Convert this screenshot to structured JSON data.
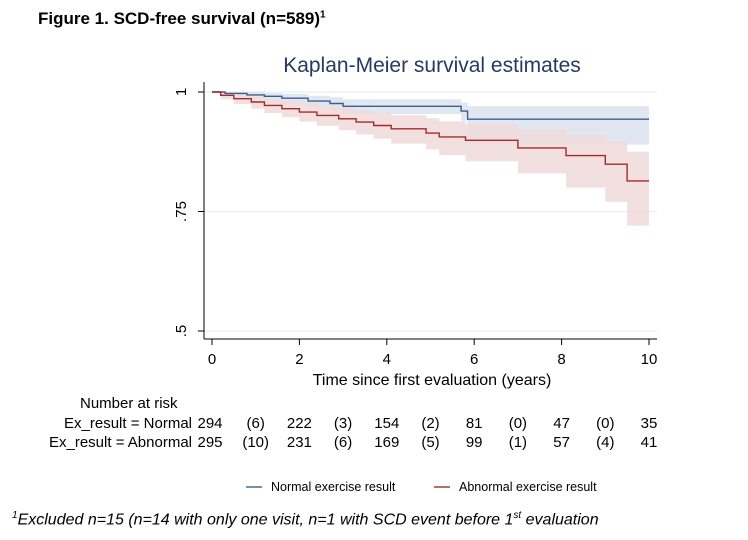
{
  "figure": {
    "title": "Figure 1. SCD-free survival (n=589)",
    "title_sup": "1"
  },
  "chart_data": {
    "type": "line",
    "title": "Kaplan-Meier survival estimates",
    "xlabel": "Time since first evaluation (years)",
    "ylabel": "",
    "xlim": [
      0,
      10
    ],
    "ylim": [
      0.5,
      1.0
    ],
    "x_ticks": [
      0,
      2,
      4,
      6,
      8,
      10
    ],
    "x_tick_labels": [
      "0",
      "2",
      "4",
      "6",
      "8",
      "10"
    ],
    "y_ticks": [
      0.5,
      0.75,
      1.0
    ],
    "y_tick_labels": [
      ".5",
      ".75",
      "1"
    ],
    "grid": true,
    "legend_position": "bottom",
    "series": [
      {
        "name": "Normal exercise result",
        "color": "#3a5f8f",
        "band_color": "#dbe3ee",
        "x": [
          0,
          0.3,
          0.8,
          1.2,
          1.6,
          2.2,
          2.7,
          3.0,
          5.7,
          5.85,
          10
        ],
        "y": [
          1.0,
          0.997,
          0.994,
          0.991,
          0.987,
          0.981,
          0.976,
          0.97,
          0.96,
          0.943,
          0.943
        ],
        "ci_lower": [
          1.0,
          0.99,
          0.985,
          0.98,
          0.975,
          0.968,
          0.962,
          0.954,
          0.94,
          0.89,
          0.89
        ],
        "ci_upper": [
          1.0,
          1.0,
          1.0,
          0.998,
          0.996,
          0.992,
          0.989,
          0.985,
          0.978,
          0.97,
          0.97
        ]
      },
      {
        "name": "Abnormal exercise result",
        "color": "#a52a2a",
        "band_color": "#f0dada",
        "x": [
          0,
          0.2,
          0.5,
          0.9,
          1.2,
          1.6,
          2.0,
          2.4,
          2.9,
          3.3,
          3.7,
          4.1,
          4.9,
          5.2,
          5.8,
          7.0,
          8.1,
          9.0,
          9.5,
          10
        ],
        "y": [
          1.0,
          0.993,
          0.986,
          0.979,
          0.972,
          0.965,
          0.958,
          0.951,
          0.944,
          0.937,
          0.93,
          0.923,
          0.914,
          0.906,
          0.899,
          0.883,
          0.867,
          0.849,
          0.814,
          0.814
        ],
        "ci_lower": [
          1.0,
          0.985,
          0.975,
          0.965,
          0.956,
          0.947,
          0.938,
          0.929,
          0.92,
          0.911,
          0.902,
          0.892,
          0.88,
          0.868,
          0.855,
          0.83,
          0.8,
          0.77,
          0.72,
          0.72
        ],
        "ci_upper": [
          1.0,
          1.0,
          0.995,
          0.99,
          0.986,
          0.981,
          0.976,
          0.971,
          0.966,
          0.961,
          0.956,
          0.951,
          0.945,
          0.939,
          0.933,
          0.922,
          0.91,
          0.897,
          0.875,
          0.875
        ]
      }
    ],
    "risk_table": {
      "title": "Number at risk",
      "rows": [
        {
          "label": "Ex_result = Normal",
          "values": [
            "294",
            "(6)",
            "222",
            "(3)",
            "154",
            "(2)",
            "81",
            "(0)",
            "47",
            "(0)",
            "35"
          ]
        },
        {
          "label": "Ex_result = Abnormal",
          "values": [
            "295",
            "(10)",
            "231",
            "(6)",
            "169",
            "(5)",
            "99",
            "(1)",
            "57",
            "(4)",
            "41"
          ]
        }
      ],
      "positions": [
        0,
        1,
        2,
        3,
        4,
        5,
        6,
        7,
        8,
        9,
        10
      ]
    }
  },
  "footnote": {
    "sup1": "1",
    "text1": "Excluded n=15 (n=14 with only one visit, n=1 with SCD event before 1",
    "sup2": "st",
    "text2": " evaluation"
  }
}
